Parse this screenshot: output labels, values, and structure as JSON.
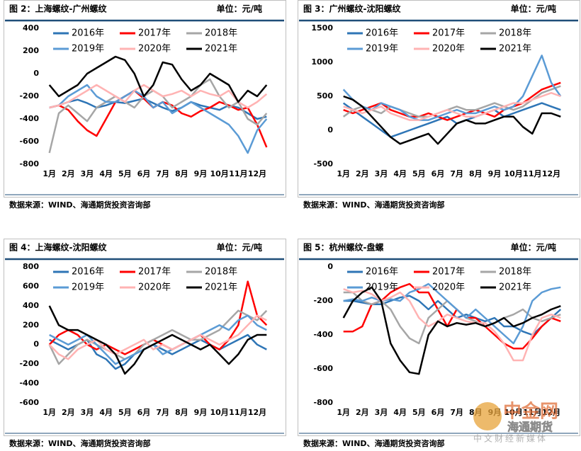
{
  "chart_data": [
    {
      "type": "line",
      "title": "图 2：上海螺纹-广州螺纹",
      "unit": "单位：元/吨",
      "source": "数据来源：WIND、海通期货投资咨询部",
      "categories": [
        "1月",
        null,
        "2月",
        null,
        "3月",
        null,
        "4月",
        null,
        "5月",
        null,
        "6月",
        null,
        "7月",
        null,
        "8月",
        null,
        "9月",
        null,
        "10月",
        null,
        "11月",
        null,
        "12月",
        null
      ],
      "ylim": [
        -800,
        400
      ],
      "yticks": [
        -800,
        -600,
        -400,
        -200,
        0,
        200,
        400
      ],
      "series": [
        {
          "name": "2016年",
          "color": "#2e75b6",
          "values": [
            -300,
            -280,
            -250,
            -230,
            -260,
            -300,
            -280,
            -250,
            -260,
            -240,
            -220,
            -260,
            -300,
            -330,
            -300,
            -250,
            -280,
            -300,
            -320,
            -280,
            -300,
            -350,
            -400,
            -380
          ]
        },
        {
          "name": "2017年",
          "color": "#ff0000",
          "values": [
            -300,
            -280,
            -320,
            -420,
            -500,
            -550,
            -400,
            -250,
            -200,
            -150,
            -220,
            -300,
            -250,
            -280,
            -350,
            -380,
            -330,
            -300,
            -250,
            -280,
            -320,
            -300,
            -450,
            -650
          ]
        },
        {
          "name": "2018年",
          "color": "#a6a6a6",
          "values": [
            -700,
            -350,
            -280,
            -350,
            -420,
            -300,
            -250,
            -200,
            -250,
            -300,
            -200,
            -150,
            -200,
            -300,
            -250,
            -200,
            -100,
            -50,
            -200,
            -300,
            -250,
            -400,
            -450,
            -350
          ]
        },
        {
          "name": "2019年",
          "color": "#5b9bd5",
          "values": [
            -300,
            -280,
            -200,
            -150,
            -100,
            -200,
            -250,
            -250,
            -200,
            -150,
            -200,
            -300,
            -250,
            -350,
            -300,
            -250,
            -300,
            -350,
            -400,
            -450,
            -550,
            -700,
            -500,
            -400
          ]
        },
        {
          "name": "2020年",
          "color": "#ffb3b3",
          "values": [
            -300,
            -280,
            -250,
            -200,
            -150,
            -100,
            -150,
            -200,
            -250,
            -150,
            -100,
            -150,
            -200,
            -180,
            -150,
            -200,
            -150,
            -180,
            -200,
            -150,
            -250,
            -300,
            -250,
            -180
          ]
        },
        {
          "name": "2021年",
          "color": "#000000",
          "values": [
            -100,
            -200,
            -150,
            -100,
            0,
            50,
            100,
            150,
            120,
            0,
            -200,
            -100,
            100,
            80,
            -50,
            -150,
            -100,
            0,
            -50,
            -100,
            -250,
            -150,
            -200,
            -100
          ]
        }
      ]
    },
    {
      "type": "line",
      "title": "图 3：广州螺纹-沈阳螺纹",
      "unit": "单位：元/吨",
      "source": "数据来源：WIND、海通期货投资咨询部",
      "categories": [
        "1月",
        null,
        "2月",
        null,
        "3月",
        null,
        "4月",
        null,
        "5月",
        null,
        "6月",
        null,
        "7月",
        null,
        "8月",
        null,
        "9月",
        null,
        "10月",
        null,
        "11月",
        null,
        "12月",
        null
      ],
      "ylim": [
        -500,
        1500
      ],
      "yticks": [
        -500,
        0,
        500,
        1000,
        1500
      ],
      "series": [
        {
          "name": "2016年",
          "color": "#2e75b6",
          "values": [
            400,
            300,
            200,
            100,
            0,
            -100,
            -50,
            0,
            50,
            100,
            150,
            200,
            100,
            150,
            200,
            250,
            300,
            200,
            250,
            300,
            350,
            400,
            350,
            300
          ]
        },
        {
          "name": "2017年",
          "color": "#ff0000",
          "values": [
            300,
            250,
            300,
            350,
            400,
            300,
            250,
            200,
            200,
            250,
            200,
            150,
            200,
            250,
            300,
            250,
            200,
            300,
            350,
            400,
            500,
            600,
            650,
            700
          ]
        },
        {
          "name": "2018年",
          "color": "#a6a6a6",
          "values": [
            200,
            300,
            350,
            300,
            250,
            350,
            300,
            250,
            200,
            200,
            250,
            300,
            350,
            300,
            300,
            350,
            400,
            350,
            300,
            350,
            450,
            550,
            600,
            650
          ]
        },
        {
          "name": "2019年",
          "color": "#5b9bd5",
          "values": [
            600,
            450,
            350,
            300,
            400,
            350,
            300,
            200,
            150,
            150,
            200,
            250,
            300,
            250,
            250,
            300,
            350,
            300,
            350,
            500,
            800,
            1100,
            700,
            500
          ]
        },
        {
          "name": "2020年",
          "color": "#ffb3b3",
          "values": [
            350,
            300,
            250,
            300,
            350,
            250,
            200,
            150,
            150,
            200,
            250,
            300,
            250,
            200,
            200,
            250,
            300,
            350,
            400,
            400,
            450,
            500,
            550,
            500
          ]
        },
        {
          "name": "2021年",
          "color": "#000000",
          "values": [
            500,
            450,
            350,
            200,
            50,
            -100,
            -200,
            -150,
            -100,
            -50,
            -200,
            -50,
            100,
            150,
            100,
            100,
            150,
            200,
            200,
            50,
            -50,
            250,
            250,
            200
          ]
        }
      ]
    },
    {
      "type": "line",
      "title": "图 4：上海螺纹-沈阳螺纹",
      "unit": "单位：元/吨",
      "source": "数据来源：WIND、海通期货投资咨询部",
      "categories": [
        "1月",
        null,
        "2月",
        null,
        "3月",
        null,
        "4月",
        null,
        "5月",
        null,
        "6月",
        null,
        "7月",
        null,
        "8月",
        null,
        "9月",
        null,
        "10月",
        null,
        "11月",
        null,
        "12月",
        null
      ],
      "ylim": [
        -600,
        800
      ],
      "yticks": [
        -600,
        -400,
        -200,
        0,
        200,
        400,
        600,
        800
      ],
      "series": [
        {
          "name": "2016年",
          "color": "#2e75b6",
          "values": [
            50,
            0,
            -50,
            0,
            50,
            -100,
            -150,
            -250,
            -200,
            -100,
            -50,
            0,
            -50,
            -100,
            -50,
            0,
            50,
            0,
            -50,
            0,
            50,
            100,
            0,
            -50
          ]
        },
        {
          "name": "2017年",
          "color": "#ff0000",
          "values": [
            0,
            100,
            150,
            100,
            0,
            -50,
            0,
            -50,
            -100,
            -50,
            0,
            50,
            0,
            -50,
            0,
            50,
            100,
            0,
            -50,
            50,
            200,
            650,
            300,
            200
          ]
        },
        {
          "name": "2018年",
          "color": "#a6a6a6",
          "values": [
            0,
            -200,
            -100,
            0,
            50,
            0,
            -50,
            -100,
            -150,
            -100,
            0,
            50,
            100,
            150,
            100,
            50,
            50,
            100,
            150,
            250,
            350,
            300,
            250,
            350
          ]
        },
        {
          "name": "2019年",
          "color": "#5b9bd5",
          "values": [
            100,
            50,
            0,
            50,
            100,
            0,
            -100,
            -200,
            -150,
            -100,
            -50,
            0,
            -100,
            -50,
            0,
            50,
            100,
            150,
            200,
            150,
            250,
            300,
            200,
            150
          ]
        },
        {
          "name": "2020年",
          "color": "#ffb3b3",
          "values": [
            0,
            -100,
            -150,
            -50,
            0,
            50,
            -50,
            -100,
            -50,
            0,
            50,
            -50,
            0,
            -50,
            0,
            50,
            100,
            50,
            0,
            50,
            100,
            200,
            300,
            250
          ]
        },
        {
          "name": "2021年",
          "color": "#000000",
          "values": [
            400,
            200,
            150,
            150,
            100,
            50,
            0,
            -100,
            -300,
            -200,
            -50,
            0,
            50,
            100,
            50,
            0,
            -50,
            0,
            -100,
            -200,
            -100,
            50,
            100,
            100
          ]
        }
      ]
    },
    {
      "type": "line",
      "title": "图 5：杭州螺纹-盘螺",
      "unit": "单位：元/吨",
      "source": "数据来源：WIND、海通期货投资咨询部",
      "categories": [
        "1月",
        null,
        "2月",
        null,
        "3月",
        null,
        "4月",
        null,
        "5月",
        null,
        "6月",
        null,
        "7月",
        null,
        "8月",
        null,
        "9月",
        null,
        "10月",
        null,
        "11月",
        null,
        "12月",
        null
      ],
      "ylim": [
        -800,
        0
      ],
      "yticks": [
        -800,
        -600,
        -400,
        -200,
        0
      ],
      "series": [
        {
          "name": "2016年",
          "color": "#2e75b6",
          "values": [
            -200,
            -200,
            -210,
            -220,
            -220,
            -200,
            -180,
            -170,
            -200,
            -250,
            -200,
            -250,
            -300,
            -280,
            -300,
            -320,
            -300,
            -350,
            -350,
            -380,
            -400,
            -350,
            -300,
            -250
          ]
        },
        {
          "name": "2017年",
          "color": "#ff0000",
          "values": [
            -380,
            -380,
            -350,
            -220,
            -200,
            -150,
            -120,
            -100,
            -150,
            -150,
            -250,
            -350,
            -250,
            -300,
            -300,
            -350,
            -400,
            -450,
            -480,
            -480,
            -420,
            -350,
            -300,
            -320
          ]
        },
        {
          "name": "2018年",
          "color": "#a6a6a6",
          "values": [
            -150,
            -150,
            -200,
            -220,
            -200,
            -250,
            -350,
            -420,
            -450,
            -300,
            -250,
            -200,
            -250,
            -300,
            -320,
            -350,
            -330,
            -300,
            -280,
            -250,
            -300,
            -320,
            -300,
            -280
          ]
        },
        {
          "name": "2019年",
          "color": "#5b9bd5",
          "values": [
            -200,
            -190,
            -200,
            -180,
            -200,
            -190,
            -200,
            -150,
            -130,
            -100,
            -150,
            -200,
            -250,
            -300,
            -250,
            -300,
            -350,
            -400,
            -450,
            -350,
            -200,
            -150,
            -130,
            -120
          ]
        },
        {
          "name": "2020年",
          "color": "#ffb3b3",
          "values": [
            -130,
            -150,
            -140,
            -160,
            -200,
            -180,
            -150,
            -200,
            -300,
            -350,
            -320,
            -280,
            -300,
            -320,
            -330,
            -330,
            -380,
            -450,
            -550,
            -550,
            -400,
            -300,
            -280,
            -300
          ]
        },
        {
          "name": "2021年",
          "color": "#000000",
          "values": [
            -300,
            -200,
            -150,
            -120,
            -200,
            -450,
            -550,
            -620,
            -630,
            -400,
            -320,
            -350,
            -330,
            -340,
            -330,
            -350,
            -330,
            -300,
            -350,
            -330,
            -300,
            -280,
            -250,
            -230
          ]
        }
      ]
    }
  ],
  "watermark": {
    "logo": "中金网",
    "brand": "海通期货",
    "slogan": "中文财经新媒体"
  }
}
